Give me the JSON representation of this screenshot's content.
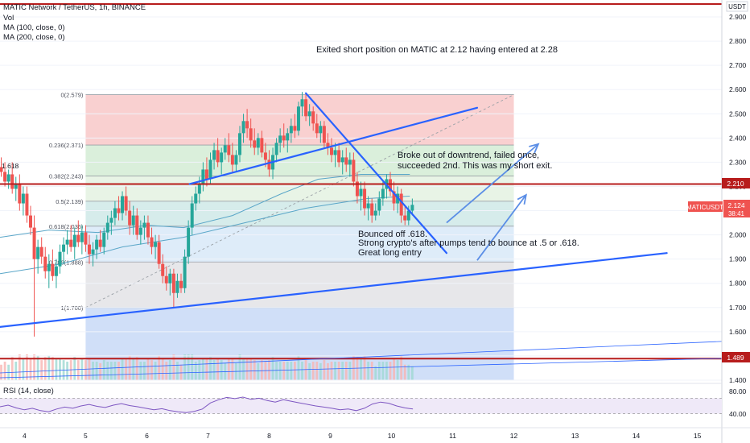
{
  "header": {
    "symbol_line": "MATIC Network / TetherUS, 1h, BINANCE",
    "indicators": [
      "Vol",
      "MA (100, close, 0)",
      "MA (200, close, 0)"
    ],
    "currency": "USDT"
  },
  "annotations": {
    "top_note": "Exited short position on MATIC at 2.12 having entered at 2.28",
    "breakout_note": [
      "Broke out of downtrend, failed once,",
      "succeeded 2nd. This was my short exit."
    ],
    "bounce_note": [
      "Bounced off .618.",
      "Strong crypto's after pumps tend to bounce at .5 or .618.",
      "Great long entry"
    ],
    "left_fib_label": "1.618"
  },
  "badges": {
    "top_level": "2.210",
    "bottom_level": "1.489",
    "ticker": "MATICUSDT",
    "price": "2.124",
    "countdown": "38:41"
  },
  "rsi": {
    "label": "RSI (14, close)",
    "upper": 70,
    "lower": 30,
    "ticks": [
      "80.00",
      "40.00"
    ]
  },
  "colors": {
    "bullish": "#26a69a",
    "bearish": "#ef5350",
    "trendline": "#2962ff",
    "horizontal": "#b71c1c",
    "projection": "#5b8ee6",
    "ma": "#5aa6c8",
    "rsi": "#7e57c2"
  },
  "chart_data": {
    "type": "candlestick",
    "y_range": [
      1.4,
      2.95
    ],
    "y_ticks": [
      1.4,
      1.5,
      1.6,
      1.7,
      1.8,
      1.9,
      2.0,
      2.1,
      2.2,
      2.3,
      2.4,
      2.5,
      2.6,
      2.7,
      2.8,
      2.9
    ],
    "y_tick_labels": [
      "1.400",
      "1.500",
      "1.600",
      "1.700",
      "1.800",
      "1.900",
      "2.000",
      "2.100",
      "2.200",
      "2.300",
      "2.400",
      "2.500",
      "2.600",
      "2.700",
      "2.800",
      "2.900"
    ],
    "x_range": [
      3.6,
      15.4
    ],
    "x_ticks": [
      4,
      5,
      6,
      7,
      8,
      9,
      10,
      11,
      12,
      13,
      14,
      15
    ],
    "fibonacci": {
      "x_range": [
        5.0,
        12.0
      ],
      "levels": [
        {
          "ratio": "0",
          "price": 2.579,
          "label": "0(2.579)"
        },
        {
          "ratio": "0.236",
          "price": 2.371,
          "label": "0.236(2.371)"
        },
        {
          "ratio": "0.382",
          "price": 2.243,
          "label": "0.382(2.243)"
        },
        {
          "ratio": "0.5",
          "price": 2.139,
          "label": "0.5(2.139)"
        },
        {
          "ratio": "0.618",
          "price": 2.036,
          "label": "0.618(2.036)"
        },
        {
          "ratio": "0.786",
          "price": 1.888,
          "label": "0.786(1.888)"
        },
        {
          "ratio": "1",
          "price": 1.7,
          "label": "1(1.700)"
        }
      ]
    },
    "horizontal_levels": [
      2.21,
      1.489
    ],
    "trendlines": [
      {
        "from": [
          3.6,
          1.62
        ],
        "to": [
          14.5,
          1.925
        ]
      },
      {
        "from": [
          6.7,
          2.21
        ],
        "to": [
          11.4,
          2.525
        ]
      },
      {
        "from": [
          8.6,
          2.585
        ],
        "to": [
          10.9,
          1.925
        ]
      }
    ],
    "projection_arrows": [
      {
        "from": [
          10.9,
          2.05
        ],
        "to": [
          12.4,
          2.375
        ]
      },
      {
        "from": [
          11.4,
          1.895
        ],
        "to": [
          12.2,
          2.165
        ]
      }
    ],
    "candles": [
      {
        "x": 3.62,
        "o": 2.28,
        "h": 2.32,
        "l": 2.24,
        "c": 2.26
      },
      {
        "x": 3.68,
        "o": 2.26,
        "h": 2.3,
        "l": 2.2,
        "c": 2.22
      },
      {
        "x": 3.74,
        "o": 2.22,
        "h": 2.27,
        "l": 2.19,
        "c": 2.25
      },
      {
        "x": 3.8,
        "o": 2.25,
        "h": 2.3,
        "l": 2.17,
        "c": 2.19
      },
      {
        "x": 3.86,
        "o": 2.19,
        "h": 2.24,
        "l": 2.14,
        "c": 2.21
      },
      {
        "x": 3.92,
        "o": 2.21,
        "h": 2.25,
        "l": 2.1,
        "c": 2.13
      },
      {
        "x": 3.98,
        "o": 2.13,
        "h": 2.2,
        "l": 2.08,
        "c": 2.17
      },
      {
        "x": 4.04,
        "o": 2.17,
        "h": 2.2,
        "l": 2.05,
        "c": 2.08
      },
      {
        "x": 4.1,
        "o": 2.08,
        "h": 2.12,
        "l": 2.0,
        "c": 2.03
      },
      {
        "x": 4.16,
        "o": 2.03,
        "h": 2.08,
        "l": 1.58,
        "c": 1.9
      },
      {
        "x": 4.22,
        "o": 1.9,
        "h": 1.98,
        "l": 1.84,
        "c": 1.95
      },
      {
        "x": 4.28,
        "o": 1.95,
        "h": 1.99,
        "l": 1.88,
        "c": 1.91
      },
      {
        "x": 4.34,
        "o": 1.91,
        "h": 1.95,
        "l": 1.82,
        "c": 1.85
      },
      {
        "x": 4.4,
        "o": 1.85,
        "h": 1.92,
        "l": 1.78,
        "c": 1.88
      },
      {
        "x": 4.46,
        "o": 1.88,
        "h": 1.94,
        "l": 1.81,
        "c": 1.83
      },
      {
        "x": 4.52,
        "o": 1.83,
        "h": 1.9,
        "l": 1.78,
        "c": 1.87
      },
      {
        "x": 4.58,
        "o": 1.87,
        "h": 1.96,
        "l": 1.84,
        "c": 1.93
      },
      {
        "x": 4.64,
        "o": 1.93,
        "h": 1.99,
        "l": 1.88,
        "c": 1.96
      },
      {
        "x": 4.7,
        "o": 1.96,
        "h": 2.02,
        "l": 1.92,
        "c": 1.98
      },
      {
        "x": 4.76,
        "o": 1.98,
        "h": 2.04,
        "l": 1.93,
        "c": 1.95
      },
      {
        "x": 4.82,
        "o": 1.95,
        "h": 2.03,
        "l": 1.9,
        "c": 2.0
      },
      {
        "x": 4.88,
        "o": 2.0,
        "h": 2.06,
        "l": 1.95,
        "c": 1.97
      },
      {
        "x": 4.94,
        "o": 1.97,
        "h": 2.04,
        "l": 1.92,
        "c": 2.01
      },
      {
        "x": 5.0,
        "o": 2.01,
        "h": 2.04,
        "l": 1.93,
        "c": 1.96
      },
      {
        "x": 5.06,
        "o": 1.96,
        "h": 2.0,
        "l": 1.88,
        "c": 1.92
      },
      {
        "x": 5.12,
        "o": 1.92,
        "h": 1.97,
        "l": 1.87,
        "c": 1.94
      },
      {
        "x": 5.18,
        "o": 1.94,
        "h": 2.0,
        "l": 1.9,
        "c": 1.98
      },
      {
        "x": 5.24,
        "o": 1.98,
        "h": 2.02,
        "l": 1.93,
        "c": 1.95
      },
      {
        "x": 5.3,
        "o": 1.95,
        "h": 2.03,
        "l": 1.92,
        "c": 2.01
      },
      {
        "x": 5.36,
        "o": 2.01,
        "h": 2.08,
        "l": 1.98,
        "c": 2.05
      },
      {
        "x": 5.42,
        "o": 2.05,
        "h": 2.1,
        "l": 2.0,
        "c": 2.07
      },
      {
        "x": 5.48,
        "o": 2.07,
        "h": 2.14,
        "l": 2.04,
        "c": 2.11
      },
      {
        "x": 5.54,
        "o": 2.11,
        "h": 2.16,
        "l": 2.06,
        "c": 2.09
      },
      {
        "x": 5.6,
        "o": 2.09,
        "h": 2.18,
        "l": 2.06,
        "c": 2.16
      },
      {
        "x": 5.66,
        "o": 2.16,
        "h": 2.2,
        "l": 2.08,
        "c": 2.1
      },
      {
        "x": 5.72,
        "o": 2.1,
        "h": 2.14,
        "l": 2.0,
        "c": 2.04
      },
      {
        "x": 5.78,
        "o": 2.04,
        "h": 2.12,
        "l": 2.0,
        "c": 2.08
      },
      {
        "x": 5.84,
        "o": 2.08,
        "h": 2.11,
        "l": 1.98,
        "c": 2.0
      },
      {
        "x": 5.9,
        "o": 2.0,
        "h": 2.06,
        "l": 1.96,
        "c": 2.03
      },
      {
        "x": 5.96,
        "o": 2.03,
        "h": 2.08,
        "l": 1.98,
        "c": 2.05
      },
      {
        "x": 6.02,
        "o": 2.05,
        "h": 2.08,
        "l": 1.96,
        "c": 1.99
      },
      {
        "x": 6.08,
        "o": 1.99,
        "h": 2.03,
        "l": 1.92,
        "c": 1.95
      },
      {
        "x": 6.14,
        "o": 1.95,
        "h": 2.0,
        "l": 1.9,
        "c": 1.97
      },
      {
        "x": 6.2,
        "o": 1.97,
        "h": 2.0,
        "l": 1.86,
        "c": 1.88
      },
      {
        "x": 6.26,
        "o": 1.88,
        "h": 1.92,
        "l": 1.8,
        "c": 1.83
      },
      {
        "x": 6.32,
        "o": 1.83,
        "h": 1.87,
        "l": 1.77,
        "c": 1.8
      },
      {
        "x": 6.38,
        "o": 1.8,
        "h": 1.86,
        "l": 1.75,
        "c": 1.84
      },
      {
        "x": 6.44,
        "o": 1.84,
        "h": 1.86,
        "l": 1.7,
        "c": 1.76
      },
      {
        "x": 6.5,
        "o": 1.76,
        "h": 1.84,
        "l": 1.74,
        "c": 1.81
      },
      {
        "x": 6.56,
        "o": 1.81,
        "h": 1.84,
        "l": 1.76,
        "c": 1.78
      },
      {
        "x": 6.62,
        "o": 1.78,
        "h": 1.94,
        "l": 1.76,
        "c": 1.91
      },
      {
        "x": 6.68,
        "o": 1.91,
        "h": 2.06,
        "l": 1.88,
        "c": 2.03
      },
      {
        "x": 6.74,
        "o": 2.03,
        "h": 2.16,
        "l": 2.0,
        "c": 2.13
      },
      {
        "x": 6.8,
        "o": 2.13,
        "h": 2.2,
        "l": 2.1,
        "c": 2.17
      },
      {
        "x": 6.86,
        "o": 2.17,
        "h": 2.24,
        "l": 2.13,
        "c": 2.21
      },
      {
        "x": 6.92,
        "o": 2.21,
        "h": 2.3,
        "l": 2.18,
        "c": 2.27
      },
      {
        "x": 6.98,
        "o": 2.27,
        "h": 2.32,
        "l": 2.2,
        "c": 2.23
      },
      {
        "x": 7.04,
        "o": 2.23,
        "h": 2.34,
        "l": 2.21,
        "c": 2.31
      },
      {
        "x": 7.1,
        "o": 2.31,
        "h": 2.38,
        "l": 2.27,
        "c": 2.35
      },
      {
        "x": 7.16,
        "o": 2.35,
        "h": 2.4,
        "l": 2.28,
        "c": 2.3
      },
      {
        "x": 7.22,
        "o": 2.3,
        "h": 2.36,
        "l": 2.25,
        "c": 2.34
      },
      {
        "x": 7.28,
        "o": 2.34,
        "h": 2.4,
        "l": 2.31,
        "c": 2.37
      },
      {
        "x": 7.34,
        "o": 2.37,
        "h": 2.42,
        "l": 2.3,
        "c": 2.33
      },
      {
        "x": 7.4,
        "o": 2.33,
        "h": 2.38,
        "l": 2.26,
        "c": 2.29
      },
      {
        "x": 7.46,
        "o": 2.29,
        "h": 2.35,
        "l": 2.26,
        "c": 2.33
      },
      {
        "x": 7.52,
        "o": 2.33,
        "h": 2.45,
        "l": 2.3,
        "c": 2.42
      },
      {
        "x": 7.58,
        "o": 2.42,
        "h": 2.5,
        "l": 2.38,
        "c": 2.47
      },
      {
        "x": 7.64,
        "o": 2.47,
        "h": 2.52,
        "l": 2.4,
        "c": 2.44
      },
      {
        "x": 7.7,
        "o": 2.44,
        "h": 2.48,
        "l": 2.36,
        "c": 2.39
      },
      {
        "x": 7.76,
        "o": 2.39,
        "h": 2.44,
        "l": 2.33,
        "c": 2.36
      },
      {
        "x": 7.82,
        "o": 2.36,
        "h": 2.42,
        "l": 2.33,
        "c": 2.4
      },
      {
        "x": 7.88,
        "o": 2.4,
        "h": 2.43,
        "l": 2.32,
        "c": 2.34
      },
      {
        "x": 7.94,
        "o": 2.34,
        "h": 2.38,
        "l": 2.28,
        "c": 2.31
      },
      {
        "x": 8.0,
        "o": 2.31,
        "h": 2.35,
        "l": 2.24,
        "c": 2.27
      },
      {
        "x": 8.06,
        "o": 2.27,
        "h": 2.36,
        "l": 2.23,
        "c": 2.33
      },
      {
        "x": 8.12,
        "o": 2.33,
        "h": 2.4,
        "l": 2.3,
        "c": 2.38
      },
      {
        "x": 8.18,
        "o": 2.38,
        "h": 2.44,
        "l": 2.34,
        "c": 2.41
      },
      {
        "x": 8.24,
        "o": 2.41,
        "h": 2.46,
        "l": 2.36,
        "c": 2.39
      },
      {
        "x": 8.3,
        "o": 2.39,
        "h": 2.44,
        "l": 2.34,
        "c": 2.42
      },
      {
        "x": 8.36,
        "o": 2.42,
        "h": 2.48,
        "l": 2.38,
        "c": 2.45
      },
      {
        "x": 8.42,
        "o": 2.45,
        "h": 2.5,
        "l": 2.4,
        "c": 2.43
      },
      {
        "x": 8.48,
        "o": 2.43,
        "h": 2.55,
        "l": 2.41,
        "c": 2.53
      },
      {
        "x": 8.54,
        "o": 2.53,
        "h": 2.59,
        "l": 2.49,
        "c": 2.56
      },
      {
        "x": 8.6,
        "o": 2.56,
        "h": 2.58,
        "l": 2.47,
        "c": 2.49
      },
      {
        "x": 8.66,
        "o": 2.49,
        "h": 2.54,
        "l": 2.45,
        "c": 2.51
      },
      {
        "x": 8.72,
        "o": 2.51,
        "h": 2.53,
        "l": 2.43,
        "c": 2.46
      },
      {
        "x": 8.78,
        "o": 2.46,
        "h": 2.5,
        "l": 2.4,
        "c": 2.42
      },
      {
        "x": 8.84,
        "o": 2.42,
        "h": 2.47,
        "l": 2.38,
        "c": 2.45
      },
      {
        "x": 8.9,
        "o": 2.45,
        "h": 2.47,
        "l": 2.36,
        "c": 2.38
      },
      {
        "x": 8.96,
        "o": 2.38,
        "h": 2.42,
        "l": 2.33,
        "c": 2.36
      },
      {
        "x": 9.02,
        "o": 2.36,
        "h": 2.4,
        "l": 2.3,
        "c": 2.33
      },
      {
        "x": 9.08,
        "o": 2.33,
        "h": 2.38,
        "l": 2.28,
        "c": 2.35
      },
      {
        "x": 9.14,
        "o": 2.35,
        "h": 2.38,
        "l": 2.28,
        "c": 2.3
      },
      {
        "x": 9.2,
        "o": 2.3,
        "h": 2.35,
        "l": 2.25,
        "c": 2.32
      },
      {
        "x": 9.26,
        "o": 2.32,
        "h": 2.36,
        "l": 2.26,
        "c": 2.29
      },
      {
        "x": 9.32,
        "o": 2.29,
        "h": 2.34,
        "l": 2.24,
        "c": 2.31
      },
      {
        "x": 9.38,
        "o": 2.31,
        "h": 2.34,
        "l": 2.2,
        "c": 2.22
      },
      {
        "x": 9.44,
        "o": 2.22,
        "h": 2.26,
        "l": 2.13,
        "c": 2.16
      },
      {
        "x": 9.5,
        "o": 2.16,
        "h": 2.22,
        "l": 2.1,
        "c": 2.19
      },
      {
        "x": 9.56,
        "o": 2.19,
        "h": 2.22,
        "l": 2.08,
        "c": 2.11
      },
      {
        "x": 9.62,
        "o": 2.11,
        "h": 2.16,
        "l": 2.06,
        "c": 2.13
      },
      {
        "x": 9.68,
        "o": 2.13,
        "h": 2.15,
        "l": 2.05,
        "c": 2.08
      },
      {
        "x": 9.74,
        "o": 2.08,
        "h": 2.13,
        "l": 2.06,
        "c": 2.1
      },
      {
        "x": 9.8,
        "o": 2.1,
        "h": 2.18,
        "l": 2.08,
        "c": 2.15
      },
      {
        "x": 9.86,
        "o": 2.15,
        "h": 2.22,
        "l": 2.12,
        "c": 2.19
      },
      {
        "x": 9.92,
        "o": 2.19,
        "h": 2.25,
        "l": 2.15,
        "c": 2.23
      },
      {
        "x": 9.98,
        "o": 2.23,
        "h": 2.26,
        "l": 2.16,
        "c": 2.18
      },
      {
        "x": 10.04,
        "o": 2.18,
        "h": 2.22,
        "l": 2.1,
        "c": 2.13
      },
      {
        "x": 10.1,
        "o": 2.13,
        "h": 2.2,
        "l": 2.09,
        "c": 2.17
      },
      {
        "x": 10.16,
        "o": 2.17,
        "h": 2.19,
        "l": 2.05,
        "c": 2.08
      },
      {
        "x": 10.22,
        "o": 2.08,
        "h": 2.12,
        "l": 2.04,
        "c": 2.06
      },
      {
        "x": 10.28,
        "o": 2.06,
        "h": 2.12,
        "l": 2.04,
        "c": 2.1
      },
      {
        "x": 10.34,
        "o": 2.1,
        "h": 2.15,
        "l": 2.08,
        "c": 2.124
      }
    ],
    "moving_averages": [
      {
        "name": "MA (100, close, 0)",
        "points": [
          [
            3.6,
            1.99
          ],
          [
            4.4,
            2.02
          ],
          [
            5.2,
            2.01
          ],
          [
            6.0,
            2.04
          ],
          [
            6.6,
            2.03
          ],
          [
            7.4,
            2.08
          ],
          [
            8.2,
            2.17
          ],
          [
            8.8,
            2.23
          ],
          [
            9.5,
            2.25
          ],
          [
            10.3,
            2.25
          ]
        ]
      },
      {
        "name": "MA (200, close, 0)",
        "points": [
          [
            3.6,
            1.84
          ],
          [
            4.6,
            1.88
          ],
          [
            5.6,
            1.95
          ],
          [
            6.6,
            1.99
          ],
          [
            7.6,
            2.05
          ],
          [
            8.6,
            2.11
          ],
          [
            9.6,
            2.15
          ],
          [
            10.3,
            2.16
          ]
        ]
      }
    ],
    "rsi_values": [
      48,
      52,
      45,
      40,
      44,
      38,
      35,
      42,
      47,
      44,
      50,
      54,
      49,
      46,
      52,
      56,
      51,
      48,
      44,
      40,
      43,
      38,
      35,
      33,
      36,
      42,
      58,
      66,
      72,
      69,
      73,
      67,
      70,
      64,
      60,
      66,
      62,
      58,
      54,
      50,
      47,
      44,
      40,
      42,
      38,
      44,
      55,
      60,
      57,
      50,
      45,
      42
    ]
  }
}
